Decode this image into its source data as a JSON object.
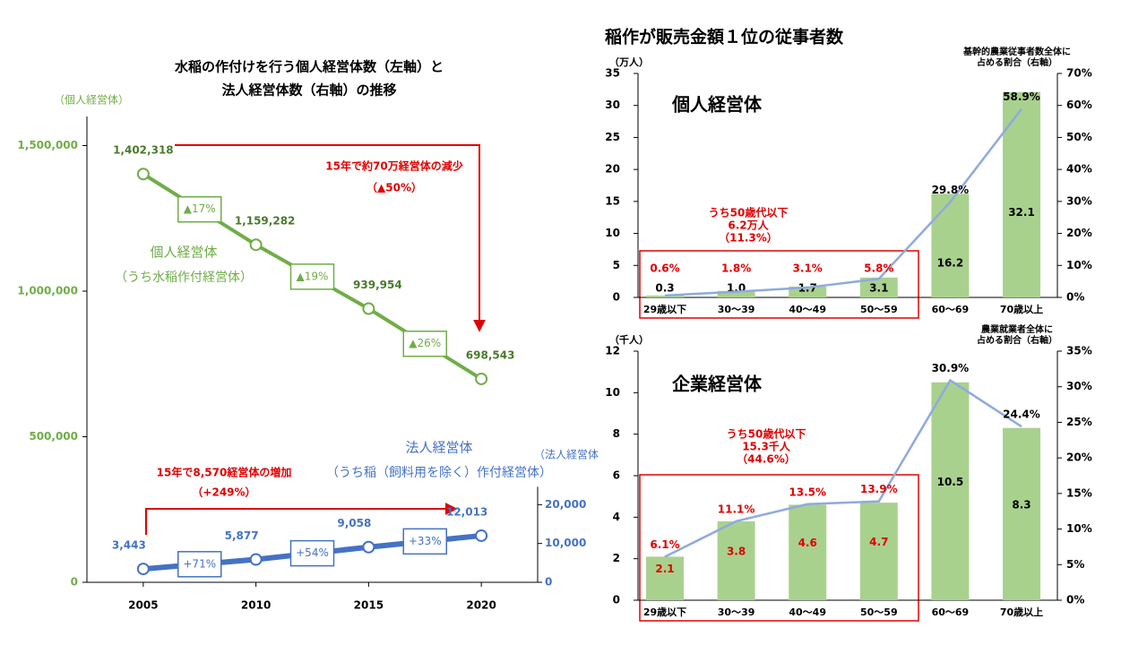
{
  "heading": "稲作が販売金額１位の従事者数",
  "chart_data": [
    {
      "type": "line",
      "title": [
        "水稲の作付けを行う個人経営体数（左軸）と",
        "法人経営体数（右軸）の推移"
      ],
      "categories": [
        "2005",
        "2010",
        "2015",
        "2020"
      ],
      "ylabel": "（個人経営体）",
      "y2label": "（法人経営体",
      "ylim": [
        0,
        1600000
      ],
      "yticks": [
        0,
        {
          "value": 500000,
          "label": "500,000"
        },
        {
          "value": 1000000,
          "label": "1,000,000"
        },
        {
          "value": 1500000,
          "label": "1,500,000"
        }
      ],
      "y2lim": [
        0,
        120000
      ],
      "y2ticks": [
        0,
        {
          "value": 10000,
          "label": "10,000"
        },
        {
          "value": 20000,
          "label": "20,000"
        }
      ],
      "series": [
        {
          "name": "個人経営体",
          "note": "（うち水稲作付経営体）",
          "color": "#70ad47",
          "values": [
            1402318,
            1159282,
            939954,
            698543
          ],
          "value_labels": [
            "1,402,318",
            "1,159,282",
            "939,954",
            "698,543"
          ],
          "change_labels": [
            "▲17%",
            "▲19%",
            "▲26%"
          ]
        },
        {
          "name": "法人経営体",
          "note": "（うち稲（飼料用を除く）作付経営体）",
          "color": "#4472c4",
          "axis": "y2",
          "values": [
            3443,
            5877,
            9058,
            12013
          ],
          "value_labels": [
            "3,443",
            "5,877",
            "9,058",
            "12,013"
          ],
          "change_labels": [
            "+71%",
            "+54%",
            "+33%"
          ]
        }
      ],
      "annotations": [
        {
          "lines": [
            "15年で約70万経営体の減少",
            "（▲50%）"
          ]
        },
        {
          "lines": [
            "15年で8,570経営体の増加",
            "（+249%）"
          ]
        }
      ]
    },
    {
      "type": "bar",
      "title": "個人経営体",
      "ylabel": "（万人）",
      "y2label": [
        "基幹的農業従事者数全体に",
        "占める割合（右軸）"
      ],
      "categories": [
        "29歳以下",
        "30～39",
        "40～49",
        "50～59",
        "60～69",
        "70歳以上"
      ],
      "ylim": [
        0,
        35
      ],
      "yticks": [
        0,
        5,
        10,
        15,
        20,
        25,
        30,
        35
      ],
      "y2lim": [
        0,
        70
      ],
      "y2ticks": [
        {
          "value": 0,
          "label": "0%"
        },
        {
          "value": 10,
          "label": "10%"
        },
        {
          "value": 20,
          "label": "20%"
        },
        {
          "value": 30,
          "label": "30%"
        },
        {
          "value": 40,
          "label": "40%"
        },
        {
          "value": 50,
          "label": "50%"
        },
        {
          "value": 60,
          "label": "60%"
        },
        {
          "value": 70,
          "label": "70%"
        }
      ],
      "series": [
        {
          "color": "#a9d18e",
          "values": [
            0.3,
            1.0,
            1.7,
            3.1,
            16.2,
            32.1
          ],
          "value_labels": [
            "0.3",
            "1.0",
            "1.7",
            "3.1",
            "16.2",
            "32.1"
          ]
        },
        {
          "color": "#8faadc",
          "axis": "y2",
          "values": [
            0.6,
            1.8,
            3.1,
            5.8,
            29.8,
            58.9
          ],
          "value_labels": [
            "0.6%",
            "1.8%",
            "3.1%",
            "5.8%",
            "29.8%",
            "58.9%"
          ]
        }
      ],
      "annotation": [
        "うち50歳代以下",
        "6.2万人",
        "（11.3%）"
      ]
    },
    {
      "type": "bar",
      "title": "企業経営体",
      "ylabel": "（千人）",
      "y2label": [
        "農業就業者全体に",
        "占める割合（右軸）"
      ],
      "categories": [
        "29歳以下",
        "30～39",
        "40～49",
        "50～59",
        "60～69",
        "70歳以上"
      ],
      "ylim": [
        0,
        12
      ],
      "yticks": [
        0,
        2,
        4,
        6,
        8,
        10,
        12
      ],
      "y2lim": [
        0,
        35
      ],
      "y2ticks": [
        {
          "value": 0,
          "label": "0%"
        },
        {
          "value": 5,
          "label": "5%"
        },
        {
          "value": 10,
          "label": "10%"
        },
        {
          "value": 15,
          "label": "15%"
        },
        {
          "value": 20,
          "label": "20%"
        },
        {
          "value": 25,
          "label": "25%"
        },
        {
          "value": 30,
          "label": "30%"
        },
        {
          "value": 35,
          "label": "35%"
        }
      ],
      "series": [
        {
          "color": "#a9d18e",
          "values": [
            2.1,
            3.8,
            4.6,
            4.7,
            10.5,
            8.3
          ]
        },
        {
          "color": "#8faadc",
          "axis": "y2",
          "values": [
            6.1,
            11.1,
            13.5,
            13.9,
            30.9,
            24.4
          ],
          "value_labels": [
            "6.1%",
            "11.1%",
            "13.5%",
            "13.9%",
            "30.9%",
            "24.4%"
          ]
        }
      ],
      "annotation": [
        "うち50歳代以下",
        "15.3千人",
        "（44.6%）"
      ]
    }
  ]
}
